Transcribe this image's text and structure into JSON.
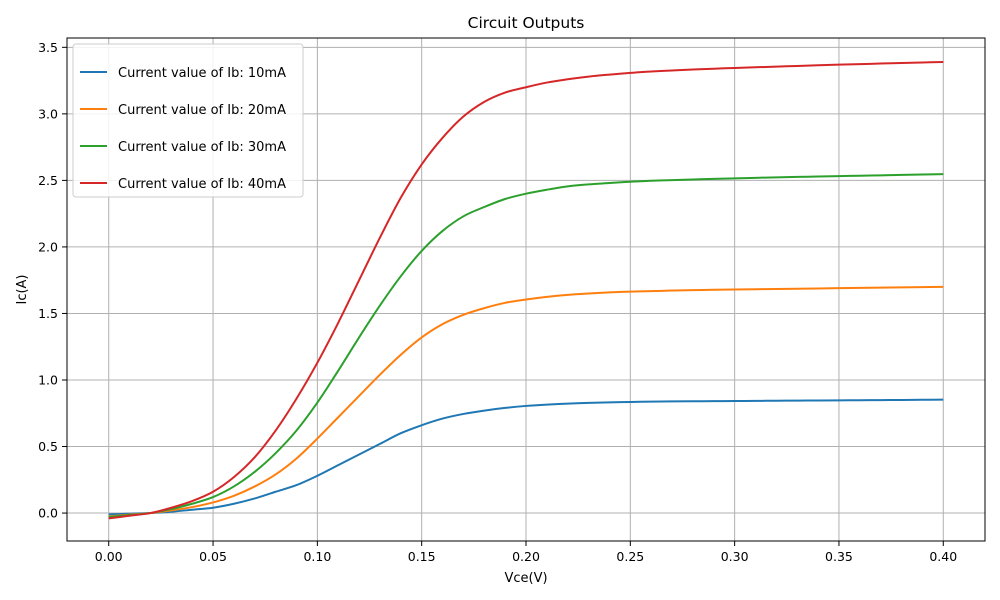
{
  "chart_data": {
    "type": "line",
    "title": "Circuit Outputs",
    "xlabel": "Vce(V)",
    "ylabel": "Ic(A)",
    "xlim": [
      -0.02,
      0.42
    ],
    "ylim": [
      -0.21,
      3.57
    ],
    "xticks": [
      0.0,
      0.05,
      0.1,
      0.15,
      0.2,
      0.25,
      0.3,
      0.35,
      0.4
    ],
    "xtick_labels": [
      "0.00",
      "0.05",
      "0.10",
      "0.15",
      "0.20",
      "0.25",
      "0.30",
      "0.35",
      "0.40"
    ],
    "yticks": [
      0.0,
      0.5,
      1.0,
      1.5,
      2.0,
      2.5,
      3.0,
      3.5
    ],
    "ytick_labels": [
      "0.0",
      "0.5",
      "1.0",
      "1.5",
      "2.0",
      "2.5",
      "3.0",
      "3.5"
    ],
    "grid": true,
    "legend_position": "top-left",
    "x": [
      0.0,
      0.01,
      0.02,
      0.03,
      0.04,
      0.05,
      0.06,
      0.07,
      0.08,
      0.09,
      0.1,
      0.11,
      0.12,
      0.13,
      0.14,
      0.15,
      0.16,
      0.17,
      0.18,
      0.19,
      0.2,
      0.21,
      0.22,
      0.23,
      0.24,
      0.25,
      0.26,
      0.27,
      0.28,
      0.29,
      0.3,
      0.31,
      0.32,
      0.33,
      0.34,
      0.35,
      0.36,
      0.37,
      0.38,
      0.39,
      0.4
    ],
    "series": [
      {
        "name": "Current value of Ib: 10mA",
        "color": "#1f77b4",
        "values": [
          -0.01,
          -0.005,
          0.0,
          0.01,
          0.025,
          0.04,
          0.07,
          0.11,
          0.16,
          0.21,
          0.28,
          0.36,
          0.44,
          0.52,
          0.6,
          0.66,
          0.71,
          0.745,
          0.77,
          0.79,
          0.805,
          0.815,
          0.822,
          0.828,
          0.832,
          0.835,
          0.837,
          0.839,
          0.84,
          0.841,
          0.842,
          0.843,
          0.844,
          0.845,
          0.846,
          0.847,
          0.848,
          0.849,
          0.85,
          0.851,
          0.852
        ]
      },
      {
        "name": "Current value of Ib: 20mA",
        "color": "#ff7f0e",
        "values": [
          -0.025,
          -0.012,
          0.0,
          0.02,
          0.045,
          0.08,
          0.13,
          0.2,
          0.29,
          0.41,
          0.56,
          0.72,
          0.88,
          1.04,
          1.19,
          1.32,
          1.42,
          1.49,
          1.54,
          1.58,
          1.605,
          1.625,
          1.64,
          1.65,
          1.658,
          1.664,
          1.668,
          1.672,
          1.675,
          1.678,
          1.68,
          1.682,
          1.684,
          1.686,
          1.688,
          1.69,
          1.692,
          1.694,
          1.696,
          1.698,
          1.7
        ]
      },
      {
        "name": "Current value of Ib: 30mA",
        "color": "#2ca02c",
        "values": [
          -0.03,
          -0.015,
          0.0,
          0.03,
          0.07,
          0.12,
          0.2,
          0.31,
          0.45,
          0.62,
          0.83,
          1.07,
          1.32,
          1.56,
          1.78,
          1.97,
          2.12,
          2.23,
          2.3,
          2.36,
          2.4,
          2.43,
          2.455,
          2.47,
          2.48,
          2.49,
          2.497,
          2.502,
          2.507,
          2.511,
          2.515,
          2.519,
          2.523,
          2.526,
          2.529,
          2.532,
          2.535,
          2.538,
          2.541,
          2.544,
          2.547
        ]
      },
      {
        "name": "Current value of Ib: 40mA",
        "color": "#d62728",
        "values": [
          -0.04,
          -0.02,
          0.0,
          0.04,
          0.09,
          0.16,
          0.27,
          0.42,
          0.62,
          0.86,
          1.13,
          1.43,
          1.75,
          2.07,
          2.37,
          2.62,
          2.82,
          2.98,
          3.09,
          3.16,
          3.2,
          3.235,
          3.26,
          3.28,
          3.295,
          3.308,
          3.318,
          3.326,
          3.333,
          3.339,
          3.345,
          3.35,
          3.355,
          3.36,
          3.365,
          3.37,
          3.374,
          3.378,
          3.382,
          3.386,
          3.39
        ]
      }
    ]
  }
}
